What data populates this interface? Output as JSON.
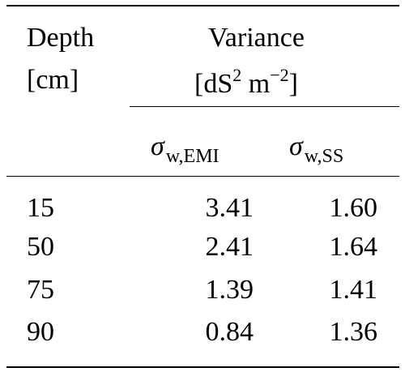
{
  "table": {
    "header": {
      "depth_line1": "Depth",
      "depth_line2": "[cm]",
      "variance_line1": "Variance",
      "variance_unit_base": "[dS",
      "variance_unit_exp1": "2",
      "variance_unit_mid": " m",
      "variance_unit_exp2": "−2",
      "variance_unit_end": "]"
    },
    "subheader": {
      "col1_symbol": "σ",
      "col1_sub": "w,EMI",
      "col2_symbol": "σ",
      "col2_sub": "w,SS"
    },
    "rows": [
      {
        "depth": "15",
        "emi": "3.41",
        "ss": "1.60"
      },
      {
        "depth": "50",
        "emi": "2.41",
        "ss": "1.64"
      },
      {
        "depth": "75",
        "emi": "1.39",
        "ss": "1.41"
      },
      {
        "depth": "90",
        "emi": "0.84",
        "ss": "1.36"
      }
    ]
  }
}
